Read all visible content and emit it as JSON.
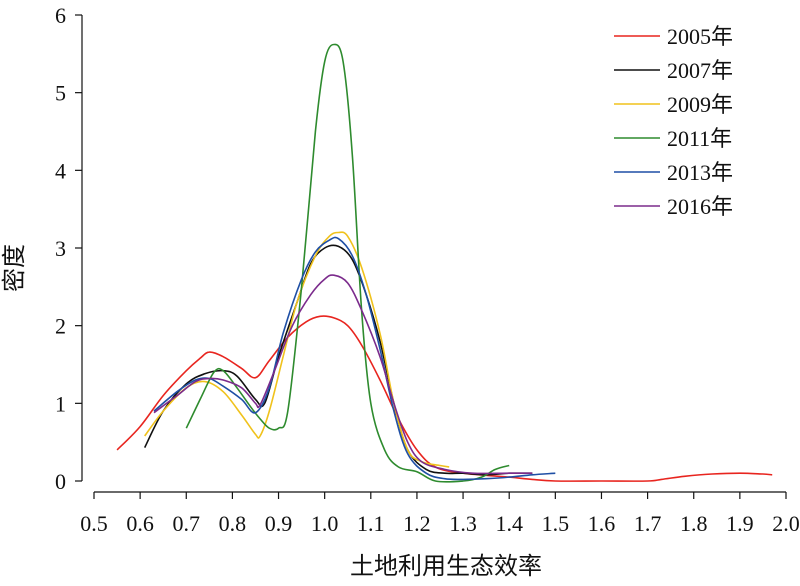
{
  "chart_data": {
    "type": "line",
    "title": "",
    "xlabel": "土地利用生态效率",
    "ylabel": "密度",
    "xlim": [
      0.5,
      2.0
    ],
    "ylim": [
      0,
      6
    ],
    "x_ticks": [
      "0.5",
      "0.6",
      "0.7",
      "0.8",
      "0.9",
      "1.0",
      "1.1",
      "1.2",
      "1.3",
      "1.4",
      "1.5",
      "1.6",
      "1.7",
      "1.8",
      "1.9",
      "2.0"
    ],
    "y_ticks": [
      "0",
      "1",
      "2",
      "3",
      "4",
      "5",
      "6"
    ],
    "grid": false,
    "legend_position": "top-right",
    "series": [
      {
        "name": "2005年",
        "color": "#e8251f",
        "points": [
          [
            0.55,
            0.4
          ],
          [
            0.6,
            0.7
          ],
          [
            0.65,
            1.1
          ],
          [
            0.7,
            1.42
          ],
          [
            0.73,
            1.58
          ],
          [
            0.75,
            1.66
          ],
          [
            0.78,
            1.6
          ],
          [
            0.82,
            1.45
          ],
          [
            0.85,
            1.33
          ],
          [
            0.88,
            1.55
          ],
          [
            0.92,
            1.85
          ],
          [
            0.96,
            2.05
          ],
          [
            0.99,
            2.12
          ],
          [
            1.02,
            2.1
          ],
          [
            1.05,
            2.0
          ],
          [
            1.08,
            1.75
          ],
          [
            1.12,
            1.3
          ],
          [
            1.16,
            0.8
          ],
          [
            1.2,
            0.4
          ],
          [
            1.24,
            0.18
          ],
          [
            1.3,
            0.1
          ],
          [
            1.4,
            0.05
          ],
          [
            1.45,
            0.02
          ],
          [
            1.5,
            0.0
          ],
          [
            1.6,
            0.0
          ],
          [
            1.7,
            0.0
          ],
          [
            1.73,
            0.02
          ],
          [
            1.78,
            0.06
          ],
          [
            1.84,
            0.09
          ],
          [
            1.9,
            0.1
          ],
          [
            1.95,
            0.09
          ],
          [
            1.97,
            0.08
          ]
        ]
      },
      {
        "name": "2007年",
        "color": "#111111",
        "points": [
          [
            0.61,
            0.43
          ],
          [
            0.65,
            0.9
          ],
          [
            0.7,
            1.25
          ],
          [
            0.74,
            1.38
          ],
          [
            0.78,
            1.42
          ],
          [
            0.81,
            1.35
          ],
          [
            0.85,
            1.05
          ],
          [
            0.87,
            1.0
          ],
          [
            0.9,
            1.6
          ],
          [
            0.94,
            2.3
          ],
          [
            0.97,
            2.8
          ],
          [
            1.0,
            3.0
          ],
          [
            1.03,
            3.02
          ],
          [
            1.06,
            2.85
          ],
          [
            1.09,
            2.4
          ],
          [
            1.12,
            1.8
          ],
          [
            1.15,
            1.0
          ],
          [
            1.18,
            0.4
          ],
          [
            1.22,
            0.15
          ],
          [
            1.26,
            0.1
          ],
          [
            1.3,
            0.1
          ],
          [
            1.35,
            0.08
          ],
          [
            1.4,
            0.1
          ],
          [
            1.45,
            0.1
          ]
        ]
      },
      {
        "name": "2009年",
        "color": "#f0c21c",
        "points": [
          [
            0.61,
            0.58
          ],
          [
            0.65,
            0.9
          ],
          [
            0.7,
            1.2
          ],
          [
            0.74,
            1.28
          ],
          [
            0.78,
            1.15
          ],
          [
            0.82,
            0.85
          ],
          [
            0.85,
            0.6
          ],
          [
            0.86,
            0.58
          ],
          [
            0.88,
            0.9
          ],
          [
            0.91,
            1.6
          ],
          [
            0.94,
            2.3
          ],
          [
            0.98,
            2.9
          ],
          [
            1.01,
            3.15
          ],
          [
            1.03,
            3.2
          ],
          [
            1.05,
            3.15
          ],
          [
            1.08,
            2.75
          ],
          [
            1.12,
            1.9
          ],
          [
            1.15,
            1.0
          ],
          [
            1.18,
            0.4
          ],
          [
            1.21,
            0.25
          ],
          [
            1.25,
            0.2
          ],
          [
            1.27,
            0.18
          ]
        ]
      },
      {
        "name": "2011年",
        "color": "#2e8b2e",
        "points": [
          [
            0.7,
            0.68
          ],
          [
            0.73,
            1.05
          ],
          [
            0.76,
            1.4
          ],
          [
            0.78,
            1.42
          ],
          [
            0.81,
            1.2
          ],
          [
            0.84,
            0.95
          ],
          [
            0.86,
            0.8
          ],
          [
            0.88,
            0.68
          ],
          [
            0.9,
            0.68
          ],
          [
            0.92,
            0.9
          ],
          [
            0.95,
            2.5
          ],
          [
            0.98,
            4.5
          ],
          [
            1.0,
            5.4
          ],
          [
            1.02,
            5.62
          ],
          [
            1.04,
            5.4
          ],
          [
            1.06,
            4.2
          ],
          [
            1.08,
            2.2
          ],
          [
            1.1,
            1.0
          ],
          [
            1.13,
            0.4
          ],
          [
            1.16,
            0.18
          ],
          [
            1.2,
            0.12
          ],
          [
            1.24,
            0.0
          ],
          [
            1.3,
            0.0
          ],
          [
            1.34,
            0.05
          ],
          [
            1.37,
            0.15
          ],
          [
            1.4,
            0.2
          ]
        ]
      },
      {
        "name": "2013年",
        "color": "#1f4fa5",
        "points": [
          [
            0.63,
            0.9
          ],
          [
            0.68,
            1.15
          ],
          [
            0.72,
            1.3
          ],
          [
            0.75,
            1.32
          ],
          [
            0.78,
            1.22
          ],
          [
            0.82,
            1.05
          ],
          [
            0.85,
            0.88
          ],
          [
            0.88,
            1.2
          ],
          [
            0.91,
            1.9
          ],
          [
            0.95,
            2.6
          ],
          [
            0.98,
            2.95
          ],
          [
            1.01,
            3.1
          ],
          [
            1.03,
            3.12
          ],
          [
            1.06,
            2.9
          ],
          [
            1.09,
            2.4
          ],
          [
            1.12,
            1.7
          ],
          [
            1.15,
            0.9
          ],
          [
            1.18,
            0.35
          ],
          [
            1.22,
            0.1
          ],
          [
            1.26,
            0.03
          ],
          [
            1.3,
            0.02
          ],
          [
            1.35,
            0.03
          ],
          [
            1.4,
            0.05
          ],
          [
            1.45,
            0.08
          ],
          [
            1.5,
            0.1
          ]
        ]
      },
      {
        "name": "2016年",
        "color": "#7b2b8c",
        "points": [
          [
            0.63,
            0.88
          ],
          [
            0.68,
            1.1
          ],
          [
            0.72,
            1.28
          ],
          [
            0.75,
            1.32
          ],
          [
            0.78,
            1.3
          ],
          [
            0.82,
            1.2
          ],
          [
            0.85,
            1.0
          ],
          [
            0.86,
            0.98
          ],
          [
            0.89,
            1.4
          ],
          [
            0.93,
            2.0
          ],
          [
            0.97,
            2.4
          ],
          [
            1.0,
            2.6
          ],
          [
            1.02,
            2.65
          ],
          [
            1.05,
            2.55
          ],
          [
            1.08,
            2.2
          ],
          [
            1.12,
            1.6
          ],
          [
            1.15,
            1.0
          ],
          [
            1.18,
            0.5
          ],
          [
            1.21,
            0.25
          ],
          [
            1.26,
            0.15
          ],
          [
            1.32,
            0.1
          ],
          [
            1.4,
            0.1
          ],
          [
            1.45,
            0.1
          ]
        ]
      }
    ]
  }
}
